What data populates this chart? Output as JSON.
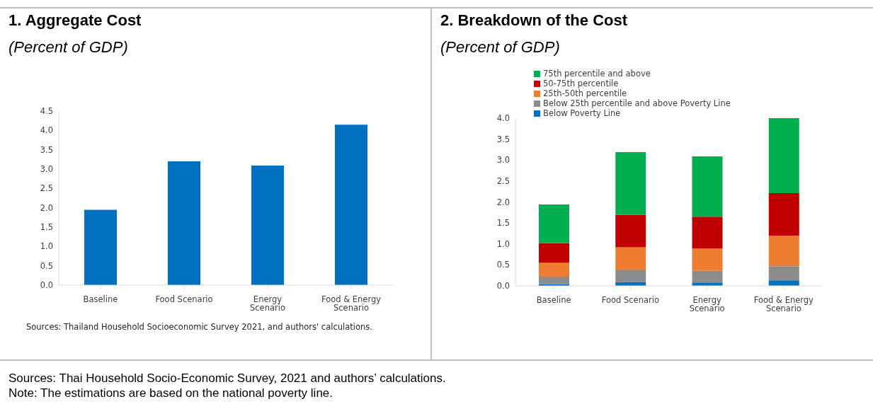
{
  "chart_data": [
    {
      "type": "bar",
      "title": "1. Aggregate Cost",
      "subtitle": "(Percent of GDP)",
      "categories": [
        "Baseline",
        "Food Scenario",
        "Energy Scenario",
        "Food & Energy Scenario"
      ],
      "values": [
        1.95,
        3.2,
        3.09,
        4.15
      ],
      "color": "#0070c0",
      "ylim": [
        0,
        4.5
      ],
      "yticks": [
        {
          "value": 0,
          "label": "0.0"
        },
        0.5,
        {
          "value": 1,
          "label": "1.0"
        },
        1.5,
        {
          "value": 2,
          "label": "2.0"
        },
        2.5,
        {
          "value": 3,
          "label": "3.0"
        },
        3.5,
        {
          "value": 4,
          "label": "4.0"
        },
        4.5
      ],
      "grid": false,
      "annotations": [
        "Sources: Thailand Household Socioeconomic Survey 2021, and authors' calculations."
      ]
    },
    {
      "type": "bar",
      "title": "2. Breakdown of the Cost",
      "subtitle": "(Percent of GDP)",
      "categories": [
        "Baseline",
        "Food Scenario",
        "Energy Scenario",
        "Food & Energy Scenario"
      ],
      "stacked": true,
      "series": [
        {
          "name": "Below Poverty Line",
          "color": "#0070c0",
          "values": [
            0.04,
            0.09,
            0.08,
            0.13
          ]
        },
        {
          "name": "Below 25th percentile and above Poverty Line",
          "color": "#8c8c8c",
          "values": [
            0.18,
            0.28,
            0.28,
            0.34
          ]
        },
        {
          "name": "25th-50th percentile",
          "color": "#ed7d31",
          "values": [
            0.33,
            0.55,
            0.53,
            0.73
          ]
        },
        {
          "name": "50-75th percentile",
          "color": "#c00000",
          "values": [
            0.47,
            0.77,
            0.76,
            1.01
          ]
        },
        {
          "name": "75th percentile and above",
          "color": "#00b050",
          "values": [
            0.92,
            1.5,
            1.44,
            1.79
          ]
        }
      ],
      "ylim": [
        0,
        4
      ],
      "yticks": [
        {
          "value": 0,
          "label": "0.0"
        },
        0.5,
        {
          "value": 1,
          "label": "1.0"
        },
        1.5,
        {
          "value": 2,
          "label": "2.0"
        },
        2.5,
        {
          "value": 3,
          "label": "3.0"
        },
        3.5,
        {
          "value": 4,
          "label": "4.0"
        }
      ],
      "grid": false,
      "legend": "top left",
      "annotations": [
        "Sources: Thai Household Socio-Economic Survey, 2021 and authors’ calculations.",
        "Note: The estimations are based on the national poverty line."
      ]
    }
  ]
}
